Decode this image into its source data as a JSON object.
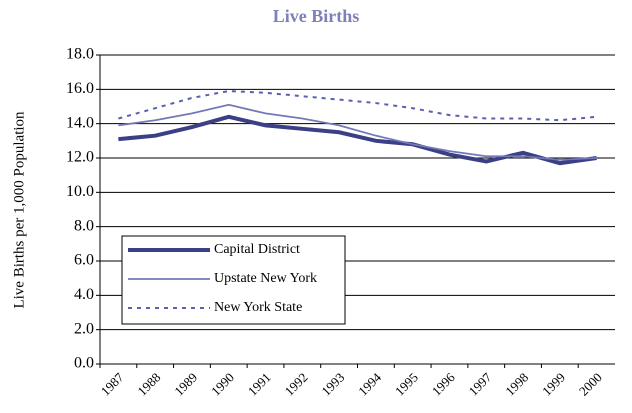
{
  "chart_data": {
    "type": "line",
    "title": "Live Births",
    "y_label": "Live Births per 1,000 Population",
    "categories": [
      "1987",
      "1988",
      "1989",
      "1990",
      "1991",
      "1992",
      "1993",
      "1994",
      "1995",
      "1996",
      "1997",
      "1998",
      "1999",
      "2000"
    ],
    "series": [
      {
        "name": "Capital District",
        "color": "#3b3f86",
        "values": [
          13.1,
          13.3,
          13.8,
          14.4,
          13.9,
          13.7,
          13.5,
          13.0,
          12.8,
          12.2,
          11.8,
          12.3,
          11.7,
          12.0
        ]
      },
      {
        "name": "Upstate New York",
        "color": "#7378b8",
        "values": [
          13.9,
          14.2,
          14.6,
          15.1,
          14.6,
          14.3,
          13.9,
          13.3,
          12.8,
          12.4,
          12.1,
          12.1,
          11.9,
          12.0
        ]
      },
      {
        "name": "New York State",
        "color": "#5a5fb0",
        "values": [
          14.3,
          14.9,
          15.5,
          15.9,
          15.8,
          15.6,
          15.4,
          15.2,
          14.9,
          14.5,
          14.3,
          14.3,
          14.2,
          14.4
        ]
      }
    ],
    "ylim": [
      0,
      18
    ],
    "yticks": [
      {
        "value": 0,
        "label": "0.0"
      },
      {
        "value": 2,
        "label": "2.0"
      },
      {
        "value": 4,
        "label": "4.0"
      },
      {
        "value": 6,
        "label": "6.0"
      },
      {
        "value": 8,
        "label": "8.0"
      },
      {
        "value": 10,
        "label": "10.0"
      },
      {
        "value": 12,
        "label": "12.0"
      },
      {
        "value": 14,
        "label": "14.0"
      },
      {
        "value": 16,
        "label": "16.0"
      },
      {
        "value": 18,
        "label": "18.0"
      }
    ],
    "grid": true,
    "legend": "lower left"
  }
}
